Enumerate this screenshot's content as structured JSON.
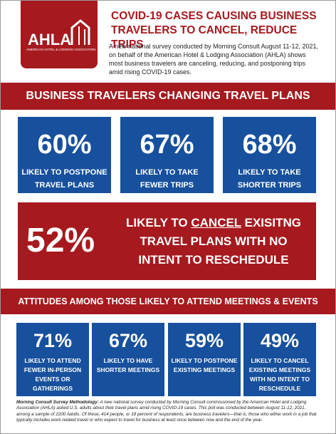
{
  "header": {
    "logo": "AHLA",
    "logo_sub": "AMERICAN HOTEL & LODGING ASSOCIATION",
    "title": [
      "COVID-19 CASES CAUSING BUSINESS",
      "TRAVELERS TO CANCEL, REDUCE TRIPS"
    ],
    "intro": "A new national survey conducted by Morning Consult August 11-12, 2021, on behalf of the American Hotel & Lodging Association (AHLA) shows most business travelers are canceling, reducing, and postponing trips amid rising COVID-19 cases."
  },
  "section1": {
    "title": "BUSINESS TRAVELERS CHANGING TRAVEL PLANS",
    "stats": [
      {
        "value": "60%",
        "label": [
          "LIKELY TO POSTPONE",
          "TRAVEL PLANS"
        ]
      },
      {
        "value": "67%",
        "label": [
          "LIKELY TO TAKE",
          "FEWER TRIPS"
        ]
      },
      {
        "value": "68%",
        "label": [
          "LIKELY TO TAKE",
          "SHORTER TRIPS"
        ]
      }
    ],
    "highlight": {
      "value": "52%",
      "line1": [
        "LIKELY TO",
        "CANCEL",
        "EXISITNG"
      ],
      "line2": "TRAVEL PLANS WITH NO",
      "line3": "INTENT TO RESCHEDULE"
    }
  },
  "section2": {
    "title": "ATTITUDES AMONG THOSE LIKELY TO ATTEND MEETINGS & EVENTS",
    "stats": [
      {
        "value": "71%",
        "label": [
          "LIKELY TO ATTEND",
          "FEWER IN-PERSON",
          "EVENTS OR",
          "GATHERINGS"
        ]
      },
      {
        "value": "67%",
        "label": [
          "LIKELY TO HAVE",
          "SHORTER MEETINGS"
        ]
      },
      {
        "value": "59%",
        "label": [
          "LIKELY TO POSTPONE",
          "EXISTING MEETINGS"
        ]
      },
      {
        "value": "49%",
        "label": [
          "LIKELY TO CANCEL",
          "EXISTING MEETINGS",
          "WITH NO INTENT TO",
          "RESCHEDULE"
        ]
      }
    ]
  },
  "footnote": {
    "lead": "Morning Consult Survey Methodology:",
    "text": "A new national survey conducted by Morning Consult commissioned by the American Hotel and Lodging Association (AHLA) asked U.S. adults about their travel plans amid rising COVID-19 cases. This poll was conducted between August 11-12, 2021, among a sample of 2200 Adults. Of these, 414 people, or 18 percent of respondents, are business travelers—that is, those who either work in a job that typically includes work-related travel or who expect to travel for business at least once between now and the end of the year."
  }
}
